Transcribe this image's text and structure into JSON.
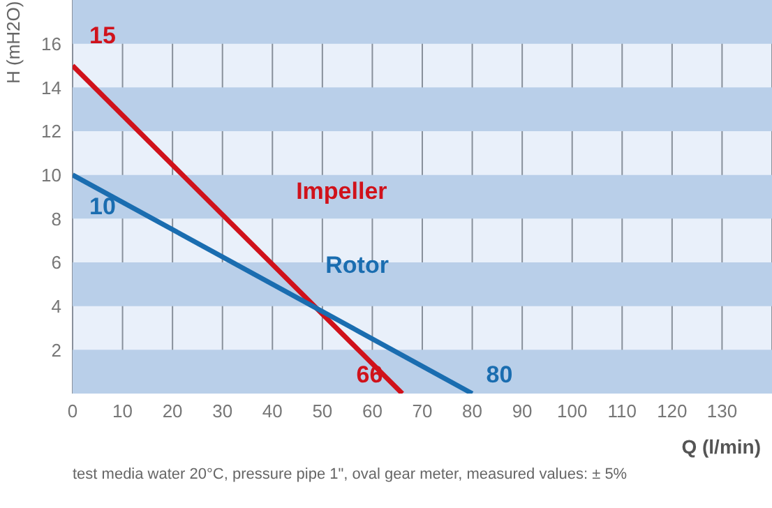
{
  "chart_data": {
    "type": "line",
    "xlabel": "Q (l/min)",
    "ylabel": "H (mH2O)",
    "series": [
      {
        "name": "Impeller",
        "color": "#d0121b",
        "x": [
          0,
          66
        ],
        "values": [
          15,
          0
        ]
      },
      {
        "name": "Rotor",
        "color": "#1a6db0",
        "x": [
          0,
          80
        ],
        "values": [
          10,
          0
        ]
      }
    ],
    "xlim": [
      0,
      140
    ],
    "xticks": [
      0,
      10,
      20,
      30,
      40,
      50,
      60,
      70,
      80,
      90,
      100,
      110,
      120,
      130
    ],
    "ylim": [
      0,
      18
    ],
    "yticks": [
      2,
      4,
      6,
      8,
      10,
      12,
      14,
      16
    ],
    "grid": "x",
    "legend": false,
    "marker": "none",
    "line_style": "solid",
    "bands": [
      {
        "axis": "y",
        "from": 0,
        "to": 2,
        "color": "#b9cfe9"
      },
      {
        "axis": "y",
        "from": 4,
        "to": 6,
        "color": "#b9cfe9"
      },
      {
        "axis": "y",
        "from": 8,
        "to": 10,
        "color": "#b9cfe9"
      },
      {
        "axis": "y",
        "from": 12,
        "to": 14,
        "color": "#b9cfe9"
      },
      {
        "axis": "y",
        "from": 16,
        "to": 18,
        "color": "#b9cfe9"
      }
    ],
    "annotations": [
      {
        "text": "15",
        "x": 0,
        "y": 15
      },
      {
        "text": "10",
        "x": 0,
        "y": 10
      },
      {
        "text": "66",
        "x": 66,
        "y": 0
      },
      {
        "text": "80",
        "x": 80,
        "y": 0
      },
      "test media water 20°C, pressure pipe 1\", oval gear meter, measured values: ± 5%"
    ]
  }
}
